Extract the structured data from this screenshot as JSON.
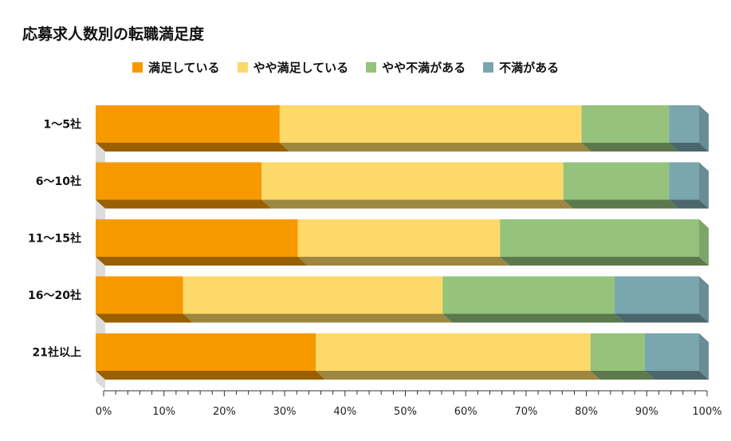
{
  "chart_data": {
    "type": "bar",
    "orientation": "horizontal",
    "stacked": true,
    "three_d": true,
    "title": "応募求人数別の転職満足度",
    "categories": [
      "1〜5社",
      "6〜10社",
      "11〜15社",
      "16〜20社",
      "21社以上"
    ],
    "series": [
      {
        "name": "満足している",
        "color": "#F79A00",
        "values": [
          30.5,
          27.5,
          33.5,
          14.5,
          36.5
        ]
      },
      {
        "name": "やや満足している",
        "color": "#FDD969",
        "values": [
          50.0,
          50.0,
          33.5,
          43.0,
          45.5
        ]
      },
      {
        "name": "やや不満がある",
        "color": "#95C37C",
        "values": [
          14.5,
          17.5,
          33.0,
          28.5,
          9.0
        ]
      },
      {
        "name": "不満がある",
        "color": "#7AA6AE",
        "values": [
          5.0,
          5.0,
          0.0,
          14.0,
          9.0
        ]
      }
    ],
    "xlim": [
      0,
      100
    ],
    "x_ticks": [
      "0%",
      "10%",
      "20%",
      "30%",
      "40%",
      "50%",
      "60%",
      "70%",
      "80%",
      "90%",
      "100%"
    ],
    "legend_position": "top",
    "grid": false
  }
}
